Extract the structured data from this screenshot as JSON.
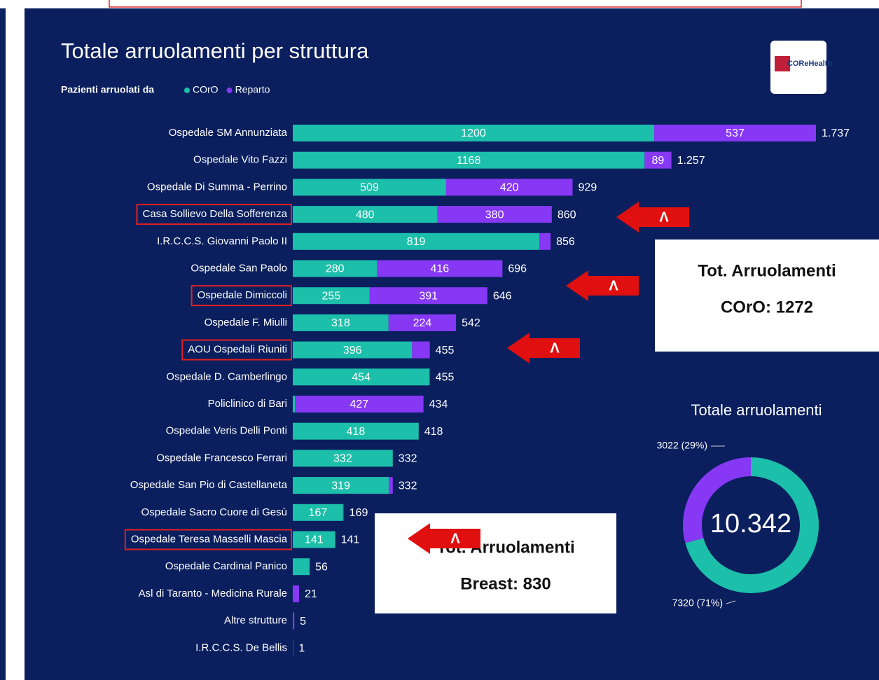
{
  "chart_data": [
    {
      "type": "stacked_barh",
      "title": "Totale arruolamenti per struttura",
      "legend_title": "Pazienti arruolati da",
      "categories": [
        "Ospedale SM Annunziata",
        "Ospedale Vito Fazzi",
        "Ospedale Di Summa - Perrino",
        "Casa Sollievo Della Sofferenza",
        "I.R.C.C.S. Giovanni Paolo II",
        "Ospedale San Paolo",
        "Ospedale Dimiccoli",
        "Ospedale F. Miulli",
        "AOU Ospedali Riuniti",
        "Ospedale D. Camberlingo",
        "Policlinico di Bari",
        "Ospedale Veris Delli Ponti",
        "Ospedale Francesco Ferrari",
        "Ospedale San Pio di Castellaneta",
        "Ospedale Sacro Cuore di Gesù",
        "Ospedale Teresa Masselli Mascia",
        "Ospedale Cardinal Panico",
        "Asl di Taranto - Medicina Rurale",
        "Altre strutture",
        "I.R.C.C.S. De Bellis"
      ],
      "series": [
        {
          "name": "COrO",
          "color": "#1cbfa9",
          "values": [
            1200,
            1168,
            509,
            480,
            819,
            280,
            255,
            318,
            396,
            454,
            7,
            418,
            332,
            319,
            167,
            141,
            56,
            0,
            0,
            1
          ]
        },
        {
          "name": "Reparto",
          "color": "#8638f5",
          "values": [
            537,
            89,
            420,
            380,
            37,
            416,
            391,
            224,
            59,
            1,
            427,
            0,
            0,
            13,
            2,
            0,
            0,
            21,
            5,
            0
          ]
        }
      ],
      "totals": [
        {
          "value": 1737,
          "label": "1.737"
        },
        {
          "value": 1257,
          "label": "1.257"
        },
        929,
        860,
        856,
        696,
        646,
        542,
        455,
        455,
        434,
        418,
        332,
        332,
        169,
        141,
        56,
        21,
        5,
        1
      ]
    },
    {
      "type": "donut",
      "title": "Totale arruolamenti",
      "center_label": "10.342",
      "categories": [
        "COrO",
        "Reparto"
      ],
      "values": [
        7320,
        3022
      ],
      "value_labels": [
        "7320 (71%)",
        "3022 (29%)"
      ],
      "colors": [
        "#1cbfa9",
        "#8638f5"
      ]
    }
  ],
  "annotations": {
    "coro_box": [
      "Tot. Arruolamenti",
      "COrO: 1272"
    ],
    "breast_box": [
      "Tot. Arruolamenti",
      "Breast: 830"
    ],
    "arrows": [
      "Λ",
      "Λ",
      "Λ",
      "Λ"
    ]
  },
  "logo": "COReHealth"
}
